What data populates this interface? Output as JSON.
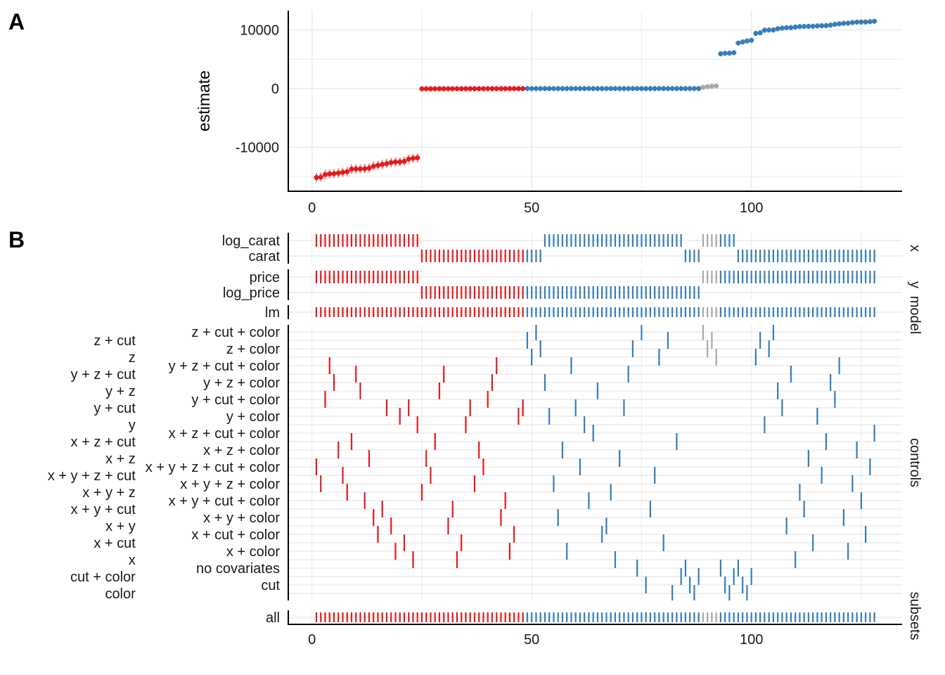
{
  "panels": {
    "a_letter": "A",
    "b_letter": "B"
  },
  "colors": {
    "negative": "#E41A1C",
    "positive": "#377EB8",
    "not_significant": "#AAAAAA",
    "grid": "#EBEBEB",
    "axis": "#000000"
  },
  "chart_data": [
    {
      "type": "scatter",
      "panel": "A",
      "title": "",
      "xlabel": "",
      "ylabel": "estimate",
      "xlim": [
        -5.4,
        134.3
      ],
      "ylim": [
        -17500,
        13300
      ],
      "x_ticks": [
        "0",
        "50",
        "100"
      ],
      "x_tick_values": [
        0,
        50,
        100
      ],
      "y_ticks": [
        "10000",
        "0",
        "-10000"
      ],
      "y_tick_values": [
        10000,
        0,
        -10000
      ],
      "grid": true,
      "legend": "none",
      "estimate": [
        -15160,
        -15080,
        -14650,
        -14540,
        -14500,
        -14390,
        -14280,
        -14170,
        -13730,
        -13700,
        -13700,
        -13660,
        -13550,
        -13230,
        -13080,
        -12930,
        -12790,
        -12610,
        -12500,
        -12500,
        -12390,
        -12020,
        -11880,
        -11800,
        -38,
        -36,
        -34,
        -32,
        -30,
        -29,
        -27,
        -26,
        -24,
        -23,
        -22,
        -20,
        -19,
        -18,
        -17,
        -15,
        -14,
        -13,
        -12,
        -11,
        -10,
        -9,
        -8,
        -7,
        1,
        1,
        1,
        1,
        1,
        1,
        1,
        1,
        1,
        1,
        2,
        2,
        2,
        2,
        2,
        2,
        2,
        2,
        2,
        2,
        3,
        3,
        3,
        3,
        3,
        3,
        3,
        3,
        3,
        3,
        4,
        4,
        4,
        4,
        4,
        4,
        5,
        5,
        5,
        6,
        220,
        330,
        400,
        440,
        5930,
        6010,
        6040,
        6120,
        7760,
        7940,
        8120,
        8230,
        9400,
        9510,
        9950,
        9980,
        9990,
        10200,
        10310,
        10380,
        10390,
        10490,
        10570,
        10600,
        10610,
        10620,
        10680,
        10710,
        10720,
        10820,
        10960,
        11040,
        11120,
        11150,
        11260,
        11330,
        11340,
        11350,
        11400,
        11480
      ],
      "conf_halfwidth": [
        800,
        800,
        800,
        800,
        800,
        800,
        800,
        800,
        800,
        800,
        800,
        800,
        800,
        800,
        800,
        800,
        800,
        800,
        800,
        800,
        800,
        800,
        800,
        800,
        100,
        100,
        100,
        100,
        100,
        100,
        100,
        100,
        100,
        100,
        100,
        100,
        100,
        100,
        100,
        100,
        100,
        100,
        100,
        100,
        100,
        100,
        100,
        100,
        100,
        100,
        100,
        100,
        100,
        100,
        100,
        100,
        100,
        100,
        100,
        100,
        100,
        100,
        100,
        100,
        100,
        100,
        100,
        100,
        100,
        100,
        100,
        100,
        100,
        100,
        100,
        100,
        100,
        100,
        100,
        100,
        100,
        100,
        100,
        100,
        100,
        100,
        100,
        100,
        300,
        300,
        300,
        300,
        300,
        300,
        300,
        300,
        300,
        300,
        300,
        300,
        300,
        300,
        300,
        300,
        300,
        300,
        300,
        300,
        300,
        300,
        300,
        300,
        300,
        300,
        300,
        300,
        300,
        300,
        300,
        300,
        300,
        300,
        300,
        300,
        300,
        300,
        300,
        300
      ]
    },
    {
      "type": "table",
      "panel": "B",
      "x_ticks": [
        "0",
        "50",
        "100"
      ],
      "x_tick_values": [
        0,
        50,
        100
      ],
      "facets": {
        "x": "x",
        "y": "y",
        "model": "model",
        "controls": "controls",
        "subsets": "subsets"
      },
      "x_levels": [
        "log_carat",
        "carat"
      ],
      "y_levels": [
        "price",
        "log_price"
      ],
      "model_levels": [
        "lm"
      ],
      "subsets_levels": [
        "all"
      ],
      "controls_levels": [
        "z + cut + color",
        "z + cut",
        "z + color",
        "z",
        "y + z + cut + color",
        "y + z + cut",
        "y + z + color",
        "y + z",
        "y + cut + color",
        "y + cut",
        "y + color",
        "y",
        "x + z + cut + color",
        "x + z + cut",
        "x + z + color",
        "x + z",
        "x + y + z + cut + color",
        "x + y + z + cut",
        "x + y + z + color",
        "x + y + z",
        "x + y + cut + color",
        "x + y + cut",
        "x + y + color",
        "x + y",
        "x + cut + color",
        "x + cut",
        "x + color",
        "x",
        "no covariates",
        "cut + color",
        "cut",
        "color"
      ],
      "significance_groups": [
        "negative",
        "positive",
        "not_significant"
      ],
      "group_runs": [
        [
          "negative",
          48
        ],
        [
          "positive",
          40
        ],
        [
          "not_significant",
          4
        ],
        [
          "positive",
          36
        ]
      ],
      "x_runs": [
        [
          "log_carat",
          24
        ],
        [
          "carat",
          28
        ],
        [
          "log_carat",
          32
        ],
        [
          "carat",
          4
        ],
        [
          "log_carat",
          8
        ],
        [
          "carat",
          32
        ]
      ],
      "y_runs": [
        [
          "price",
          24
        ],
        [
          "log_price",
          64
        ],
        [
          "price",
          40
        ]
      ],
      "controls": [
        "x + y + z + cut + color",
        "x + y + z + color",
        "y + cut + color",
        "y + z + cut + color",
        "y + z + color",
        "x + z + color",
        "x + y + z + cut",
        "x + y + z",
        "x + z + cut",
        "y + z + cut",
        "y + z",
        "x + y + cut + color",
        "x + z",
        "x + y + color",
        "x + cut + color",
        "x + y + cut",
        "y + cut",
        "x + y",
        "x + color",
        "y + color",
        "x + cut",
        "y + cut",
        "x",
        "y",
        "x + y + z",
        "x + z",
        "x + y + z + cut",
        "x + z + cut",
        "y + z",
        "y + z + cut",
        "x + y",
        "x + y + cut",
        "x",
        "x + cut",
        "y",
        "y + cut",
        "x + y + z + color",
        "x + z + color",
        "x + y + z + cut + color",
        "y + cut + color",
        "y + z + color",
        "y + z + cut + color",
        "x + y + color",
        "x + y + cut + color",
        "x + color",
        "x + cut + color",
        "y + color",
        "y + cut",
        "z + cut",
        "z",
        "z + cut + color",
        "z + color",
        "y + z + color",
        "y + color",
        "x + y + z + color",
        "x + y + color",
        "x + z + color",
        "x + color",
        "y + z + cut + color",
        "y + cut",
        "x + y + z + cut + color",
        "y",
        "x + y + cut + color",
        "x + z + cut + color",
        "y + z",
        "x + cut + color",
        "x + y",
        "x + y + z",
        "x",
        "x + z",
        "y + cut",
        "y + z + cut",
        "z + color",
        "no covariates",
        "z + cut + color",
        "cut",
        "x + y + cut",
        "x + y + z + cut",
        "z",
        "x + cut",
        "z + cut",
        "color",
        "x + z + cut",
        "cut + color",
        "no covariates",
        "cut",
        "color",
        "cut + color",
        "z + cut + color",
        "z + color",
        "z + cut",
        "z",
        "no covariates",
        "cut",
        "color",
        "cut + color",
        "no covariates",
        "cut",
        "color",
        "cut + color",
        "z",
        "z + cut",
        "y",
        "z + color",
        "z + cut + color",
        "y + z",
        "y + cut",
        "x + y",
        "y + z + cut",
        "x",
        "x + y + z",
        "x + y + cut",
        "x + z",
        "x + cut",
        "y + color",
        "x + y + z + cut",
        "x + z + cut",
        "y + z + color",
        "y + cut + color",
        "y + z + cut + color",
        "x + y + color",
        "x + color",
        "x + y + z + color",
        "x + z + color",
        "x + y + cut + color",
        "x + cut + color",
        "x + y + z + cut + color",
        "x + z + cut + color"
      ]
    }
  ]
}
